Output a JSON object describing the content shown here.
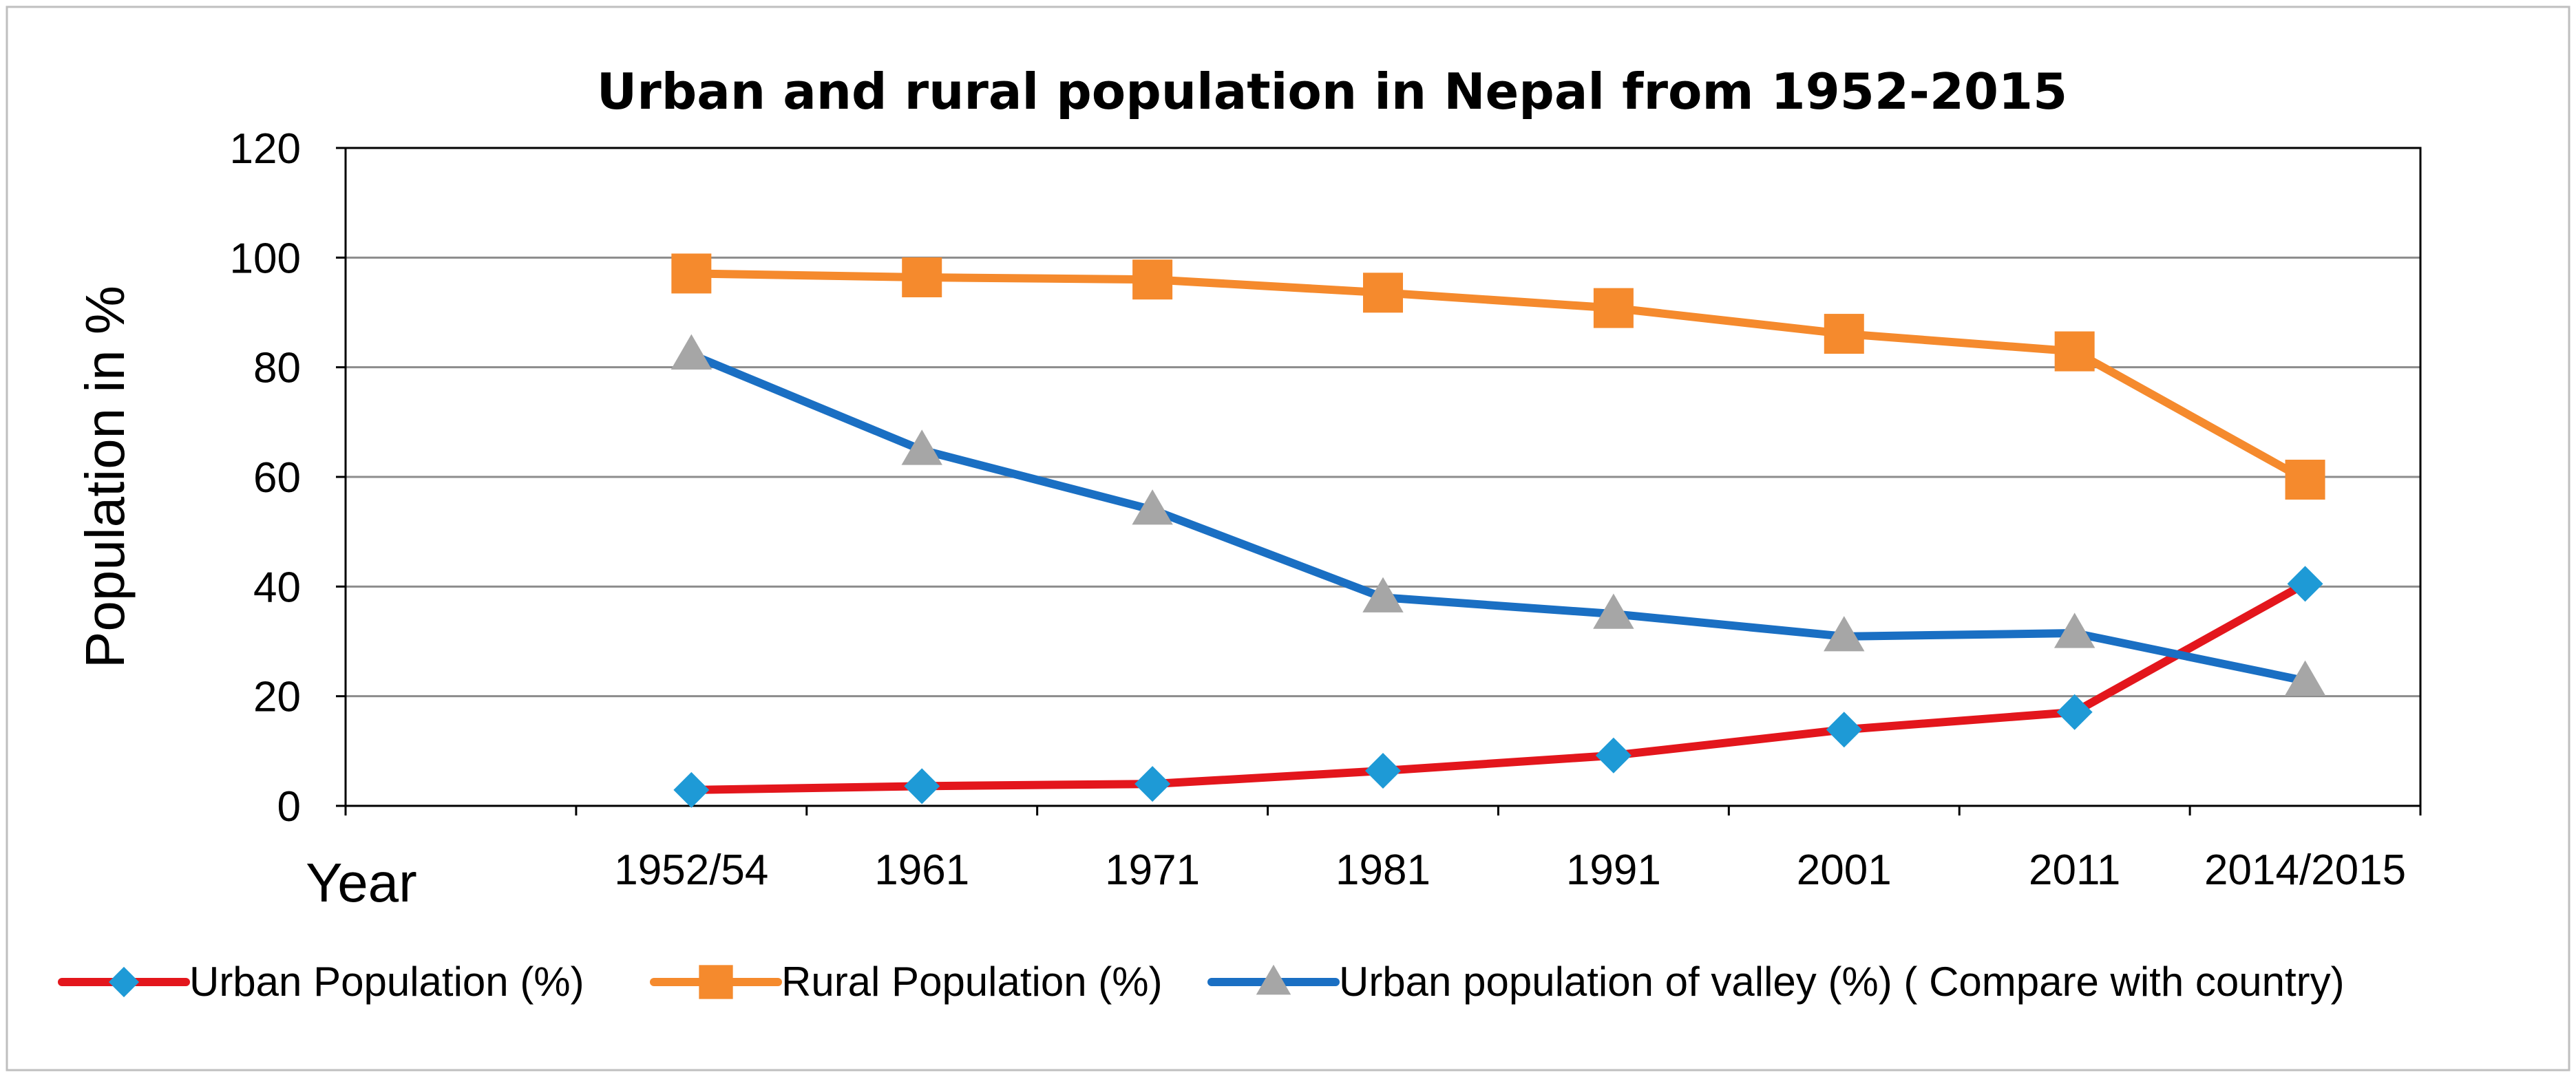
{
  "chart_data": {
    "type": "line",
    "title": "Urban and rural population in Nepal from 1952-2015",
    "ylabel": "Population  in %",
    "xlabel": "Year",
    "ylim": [
      0,
      120
    ],
    "yticks": [
      0,
      20,
      40,
      60,
      80,
      100,
      120
    ],
    "grid": "horizontal",
    "legend_position": "bottom",
    "categories": [
      "",
      "1952/54",
      "1961",
      "1971",
      "1981",
      "1991",
      "2001",
      "2011",
      "2014/2015"
    ],
    "series": [
      {
        "name": "Urban Population (%)",
        "color": "#e3161c",
        "marker": "diamond",
        "marker_color": "#1e9ad6",
        "values": [
          null,
          2.9,
          3.6,
          4.0,
          6.4,
          9.2,
          13.9,
          17.1,
          40.5
        ]
      },
      {
        "name": "Rural Population (%)",
        "color": "#f58a2d",
        "marker": "square",
        "marker_color": "#f58a2d",
        "values": [
          null,
          97.1,
          96.4,
          96.0,
          93.6,
          90.8,
          86.1,
          82.9,
          59.5
        ]
      },
      {
        "name": "Urban population of  valley (%)  ( Compare with country)",
        "color": "#1a6fc3",
        "marker": "triangle",
        "marker_color": "#a6a6a6",
        "values": [
          null,
          82.3,
          64.9,
          54.0,
          38.0,
          35.0,
          30.9,
          31.5,
          22.8
        ]
      }
    ]
  }
}
